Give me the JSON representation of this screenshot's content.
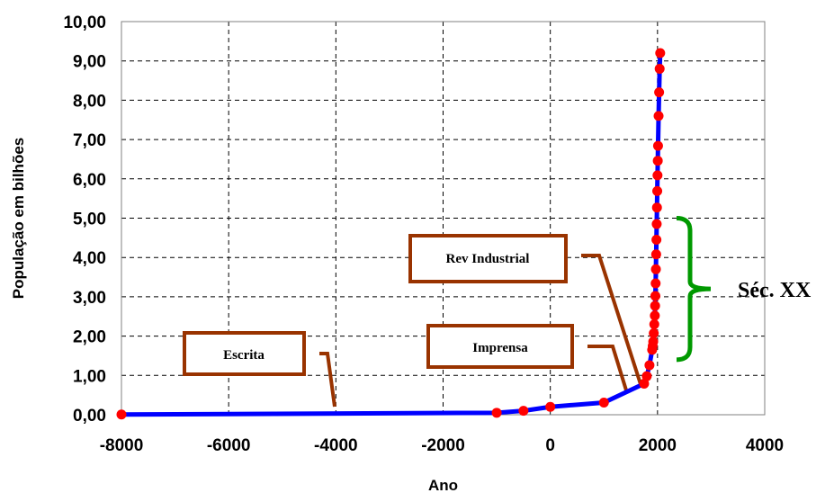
{
  "chart_data": {
    "type": "line",
    "xlabel": "Ano",
    "ylabel": "População em bilhões",
    "xlim": [
      -8000,
      4000
    ],
    "ylim": [
      0,
      10
    ],
    "x_ticks": [
      "-8000",
      "-6000",
      "-4000",
      "-2000",
      "0",
      "2000",
      "4000"
    ],
    "y_ticks": [
      "0,00",
      "1,00",
      "2,00",
      "3,00",
      "4,00",
      "5,00",
      "6,00",
      "7,00",
      "8,00",
      "9,00",
      "10,00"
    ],
    "grid": true,
    "series": [
      {
        "line_color": "#0000ff",
        "marker_color": "#ff0000",
        "points": [
          {
            "x": -8000,
            "y": 0.005
          },
          {
            "x": -1000,
            "y": 0.05
          },
          {
            "x": -500,
            "y": 0.1
          },
          {
            "x": 0,
            "y": 0.2
          },
          {
            "x": 1000,
            "y": 0.31
          },
          {
            "x": 1750,
            "y": 0.79
          },
          {
            "x": 1800,
            "y": 0.98
          },
          {
            "x": 1850,
            "y": 1.26
          },
          {
            "x": 1900,
            "y": 1.65
          },
          {
            "x": 1910,
            "y": 1.75
          },
          {
            "x": 1920,
            "y": 1.86
          },
          {
            "x": 1930,
            "y": 2.07
          },
          {
            "x": 1940,
            "y": 2.3
          },
          {
            "x": 1950,
            "y": 2.52
          },
          {
            "x": 1955,
            "y": 2.77
          },
          {
            "x": 1960,
            "y": 3.02
          },
          {
            "x": 1965,
            "y": 3.34
          },
          {
            "x": 1970,
            "y": 3.7
          },
          {
            "x": 1975,
            "y": 4.08
          },
          {
            "x": 1980,
            "y": 4.45
          },
          {
            "x": 1985,
            "y": 4.85
          },
          {
            "x": 1990,
            "y": 5.27
          },
          {
            "x": 1995,
            "y": 5.69
          },
          {
            "x": 2000,
            "y": 6.09
          },
          {
            "x": 2005,
            "y": 6.46
          },
          {
            "x": 2010,
            "y": 6.84
          },
          {
            "x": 2020,
            "y": 7.6
          },
          {
            "x": 2030,
            "y": 8.2
          },
          {
            "x": 2040,
            "y": 8.8
          },
          {
            "x": 2050,
            "y": 9.2
          }
        ]
      }
    ],
    "annotations": [
      {
        "text": "Escrita",
        "x": -4000,
        "y": 0.15
      },
      {
        "text": "Imprensa",
        "x": 1450,
        "y": 0.45
      },
      {
        "text": "Rev Industrial",
        "x": 1800,
        "y": 0.95
      }
    ],
    "bracket": {
      "text": "Séc. XX",
      "y_from": 1.4,
      "y_to": 5.0,
      "color": "#009900"
    }
  },
  "colors": {
    "callout_border": "#993300",
    "grid": "#000000"
  }
}
